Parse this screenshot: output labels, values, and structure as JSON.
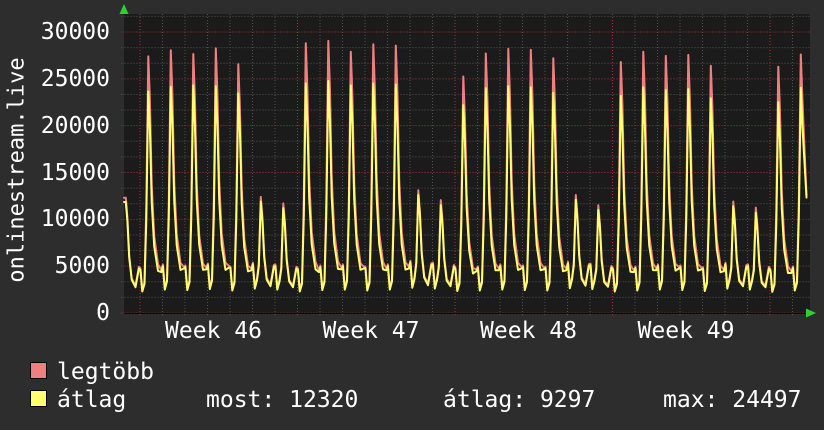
{
  "title": {
    "vertical_text": "onlinestream.live"
  },
  "colors": {
    "background": "#2d2d2d",
    "plot_background": "#1b1b1b",
    "series_max": "#f08080",
    "series_avg": "#ffff70",
    "grid_major": "#b23535",
    "grid_minor": "#787878",
    "axis_arrow": "#2fd12f",
    "text": "#ffffff"
  },
  "legend": {
    "items": [
      {
        "label": "legtöbb",
        "color": "#f08080"
      },
      {
        "label": "átlag",
        "color": "#ffff70"
      }
    ],
    "stats": [
      {
        "label": "most:",
        "value": "12320"
      },
      {
        "label": "átlag:",
        "value": "9297"
      },
      {
        "label": "max:",
        "value": "24497"
      }
    ]
  },
  "chart_data": {
    "type": "line",
    "title": "onlinestream.live",
    "xlabel": "",
    "ylabel": "",
    "x_tick_labels": [
      "Week 46",
      "Week 47",
      "Week 48",
      "Week 49"
    ],
    "y_axis": {
      "min": 0,
      "max": 30000,
      "tick_step": 5000,
      "ticks": [
        30000,
        25000,
        20000,
        15000,
        10000,
        5000,
        0
      ]
    },
    "grid": {
      "horizontal_major_every": 5000,
      "horizontal_minor_every": 1666.7,
      "vertical_minor": "1 day",
      "vertical_major": "1 week",
      "style": "dotted"
    },
    "legend_position": "bottom-left",
    "series": [
      {
        "name": "legtöbb",
        "color": "#f08080",
        "role": "daily maximum"
      },
      {
        "name": "átlag",
        "color": "#ffff70",
        "role": "daily average"
      }
    ],
    "days": [
      {
        "o": -1,
        "dow": "Sun",
        "r": 12300,
        "y": 11850,
        "m": 2500
      },
      {
        "o": 0,
        "dow": "Mon",
        "r": 27400,
        "y": 23650,
        "m": 2300
      },
      {
        "o": 1,
        "dow": "Tue",
        "r": 28050,
        "y": 24150,
        "m": 2500
      },
      {
        "o": 2,
        "dow": "Wed",
        "r": 27650,
        "y": 24300,
        "m": 2450
      },
      {
        "o": 3,
        "dow": "Thu",
        "r": 28250,
        "y": 24200,
        "m": 2550
      },
      {
        "o": 4,
        "dow": "Fri",
        "r": 26550,
        "y": 23450,
        "m": 2400
      },
      {
        "o": 5,
        "dow": "Sat",
        "r": 12400,
        "y": 11900,
        "m": 2600
      },
      {
        "o": 6,
        "dow": "Sun",
        "r": 11700,
        "y": 11200,
        "m": 2500
      },
      {
        "o": 7,
        "dow": "Mon",
        "r": 28800,
        "y": 24500,
        "m": 2300
      },
      {
        "o": 8,
        "dow": "Tue",
        "r": 29050,
        "y": 24770,
        "m": 2450
      },
      {
        "o": 9,
        "dow": "Wed",
        "r": 27900,
        "y": 24300,
        "m": 2500
      },
      {
        "o": 10,
        "dow": "Thu",
        "r": 28700,
        "y": 24500,
        "m": 2400
      },
      {
        "o": 11,
        "dow": "Fri",
        "r": 28550,
        "y": 24400,
        "m": 2500
      },
      {
        "o": 12,
        "dow": "Sat",
        "r": 13100,
        "y": 12600,
        "m": 2700
      },
      {
        "o": 13,
        "dow": "Sun",
        "r": 12050,
        "y": 11500,
        "m": 2600
      },
      {
        "o": 14,
        "dow": "Mon",
        "r": 25250,
        "y": 22200,
        "m": 2350
      },
      {
        "o": 15,
        "dow": "Tue",
        "r": 27700,
        "y": 24000,
        "m": 2400
      },
      {
        "o": 16,
        "dow": "Wed",
        "r": 28200,
        "y": 24200,
        "m": 2500
      },
      {
        "o": 17,
        "dow": "Thu",
        "r": 28100,
        "y": 24100,
        "m": 2450
      },
      {
        "o": 18,
        "dow": "Fri",
        "r": 27200,
        "y": 23500,
        "m": 2400
      },
      {
        "o": 19,
        "dow": "Sat",
        "r": 12600,
        "y": 12100,
        "m": 2650
      },
      {
        "o": 20,
        "dow": "Sun",
        "r": 11500,
        "y": 11000,
        "m": 2550
      },
      {
        "o": 21,
        "dow": "Mon",
        "r": 26800,
        "y": 23200,
        "m": 2300
      },
      {
        "o": 22,
        "dow": "Tue",
        "r": 27900,
        "y": 24100,
        "m": 2400
      },
      {
        "o": 23,
        "dow": "Wed",
        "r": 27450,
        "y": 23800,
        "m": 2500
      },
      {
        "o": 24,
        "dow": "Thu",
        "r": 27550,
        "y": 23900,
        "m": 2450
      },
      {
        "o": 25,
        "dow": "Fri",
        "r": 26400,
        "y": 22900,
        "m": 2350
      },
      {
        "o": 26,
        "dow": "Sat",
        "r": 11900,
        "y": 11400,
        "m": 2600
      },
      {
        "o": 27,
        "dow": "Sun",
        "r": 11250,
        "y": 10700,
        "m": 2500
      },
      {
        "o": 28,
        "dow": "Mon",
        "r": 26300,
        "y": 22500,
        "m": 2250
      },
      {
        "o": 29,
        "dow": "Tue",
        "r": 27600,
        "y": 24050,
        "m": 2400
      }
    ],
    "current_end_value": 12320,
    "stats": {
      "most": 12320,
      "atlag": 9297,
      "max": 24497
    }
  }
}
